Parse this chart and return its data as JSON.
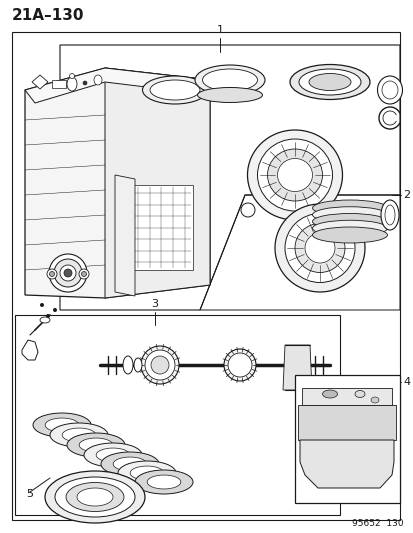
{
  "title": "21A–130",
  "footer": "95652  130",
  "bg_color": "#ffffff",
  "line_color": "#1a1a1a",
  "label_1": "1",
  "label_2": "2",
  "label_3": "3",
  "label_4": "4",
  "label_5": "5",
  "title_fontsize": 11,
  "label_fontsize": 8,
  "footer_fontsize": 6.5,
  "fig_width": 4.14,
  "fig_height": 5.33,
  "dpi": 100
}
